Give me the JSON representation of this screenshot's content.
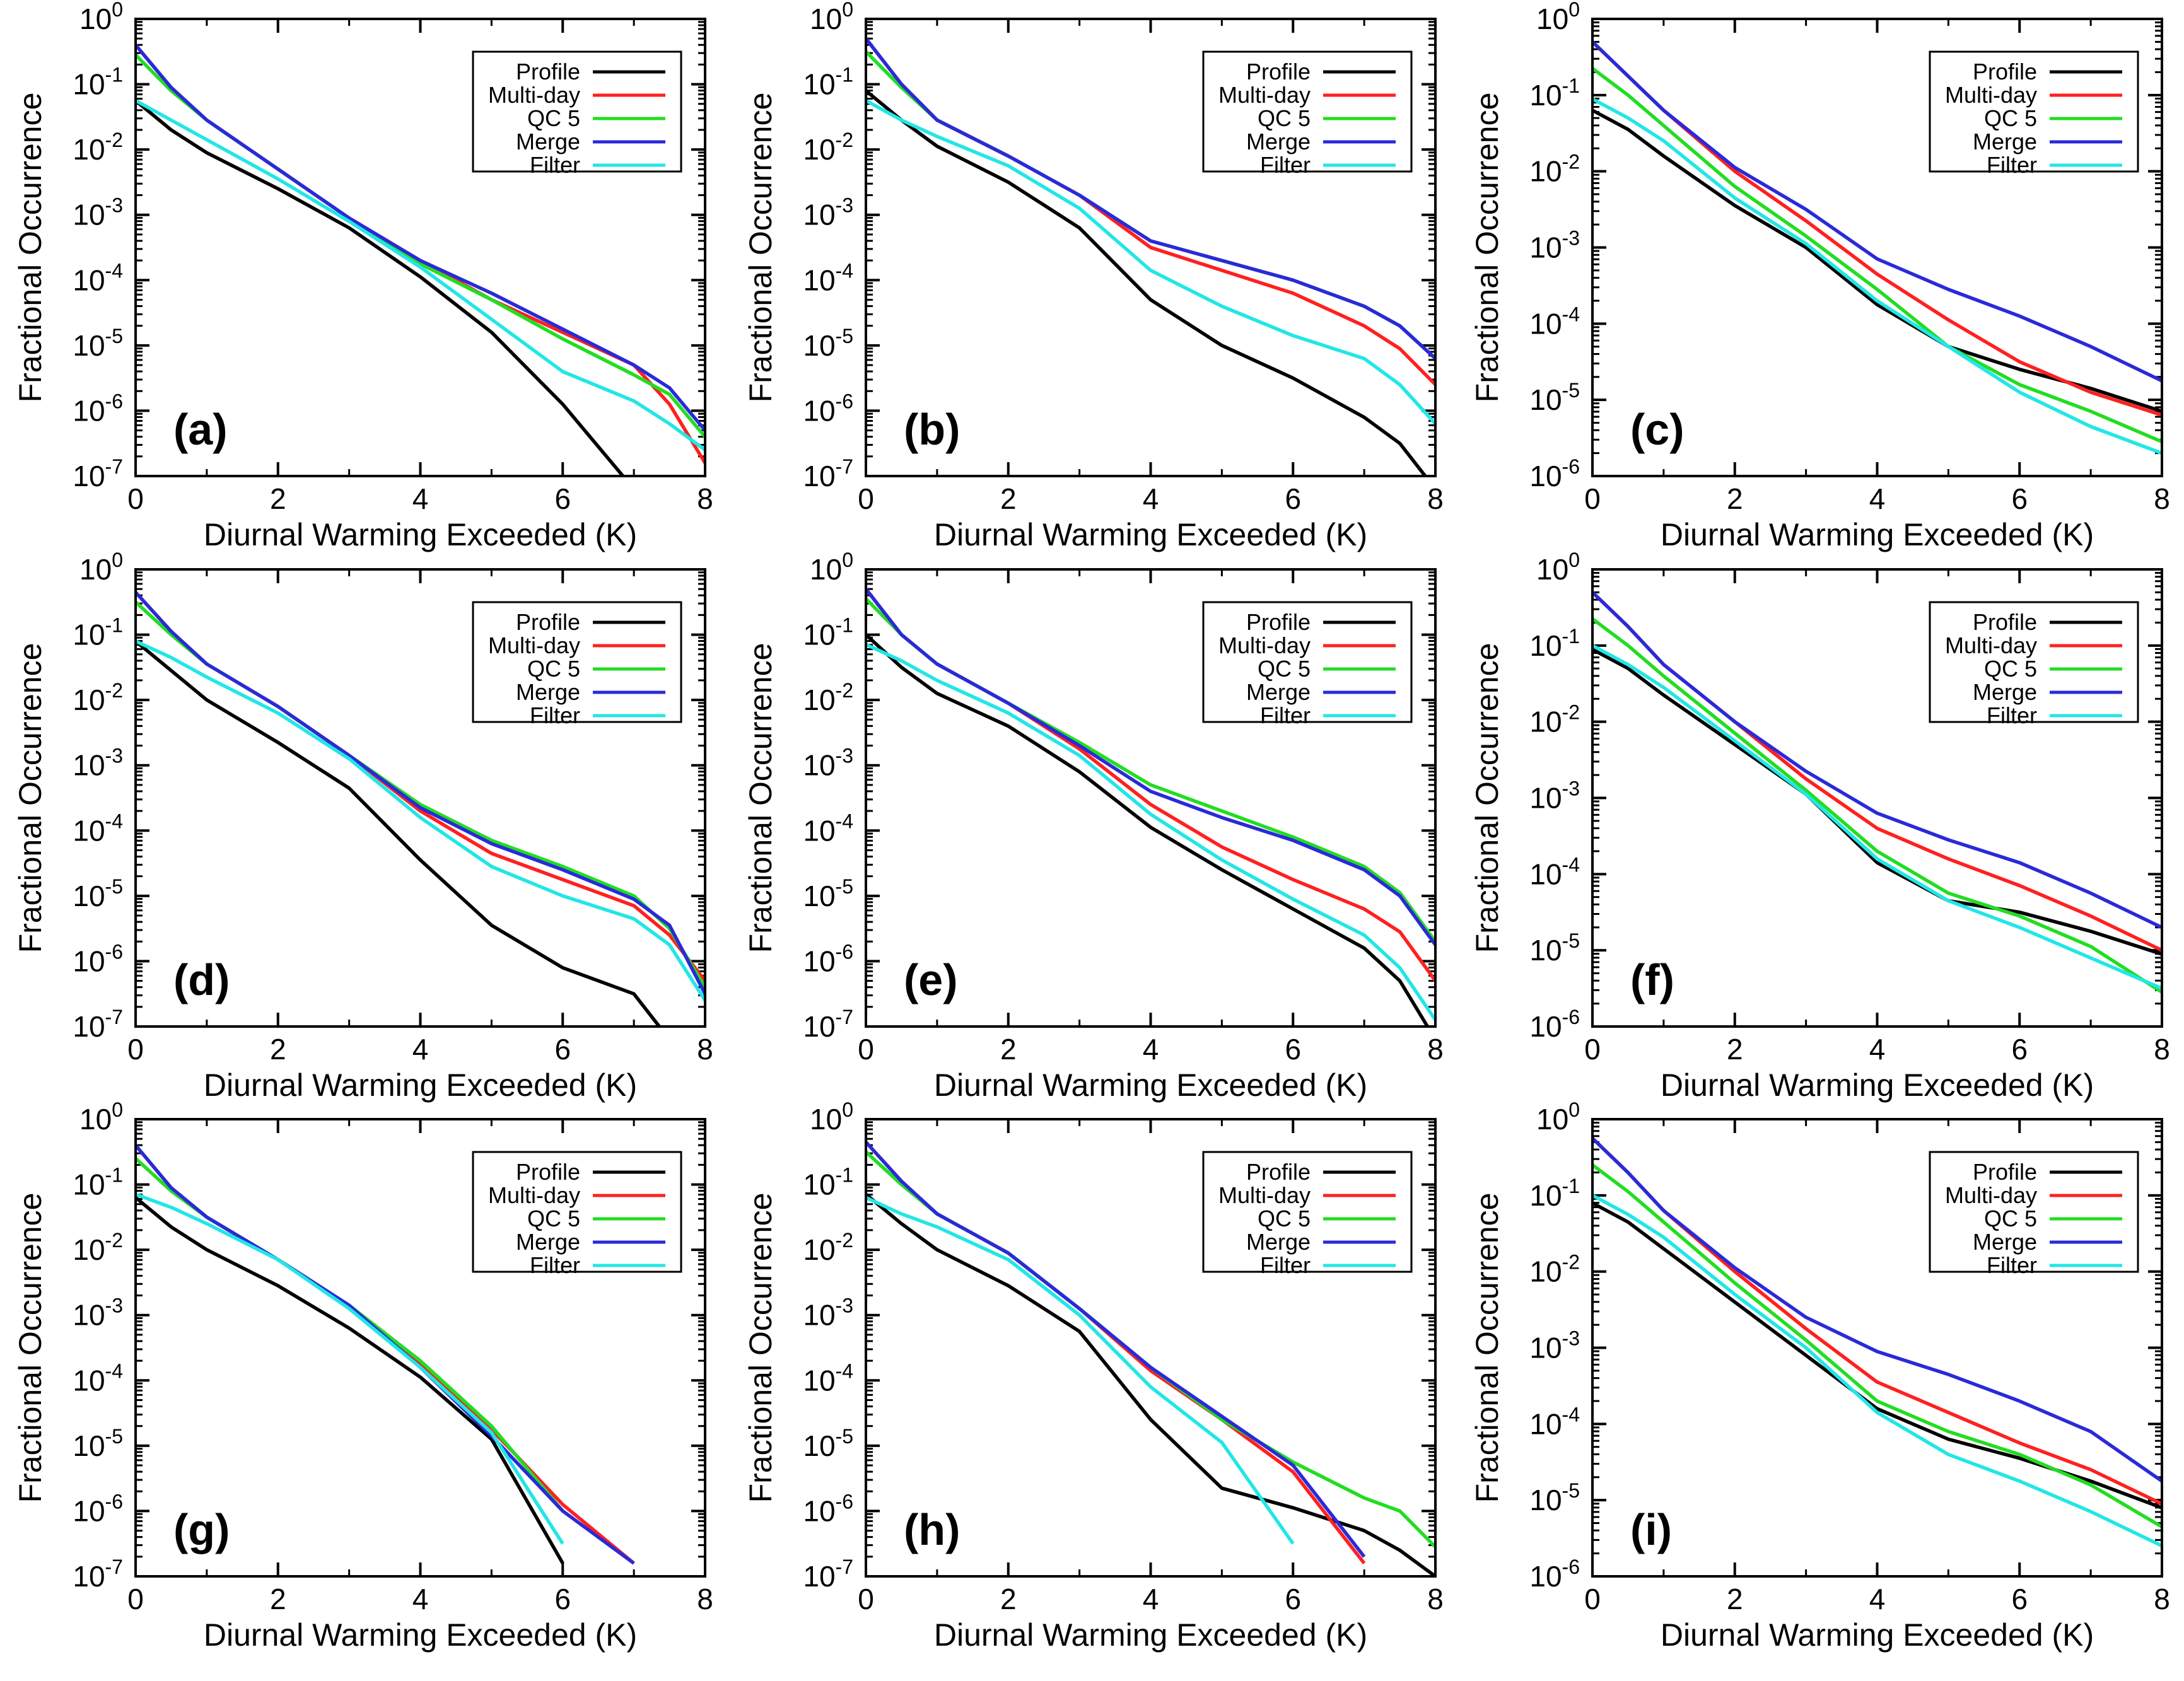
{
  "figure": {
    "xlabel": "Diurnal Warming Exceeded (K)",
    "ylabel": "Fractional Occurrence",
    "x_ticks": [
      "0",
      "2",
      "4",
      "6",
      "8"
    ],
    "legend": [
      {
        "name": "Profile",
        "color": "#000000"
      },
      {
        "name": "Multi-day",
        "color": "#ff2020"
      },
      {
        "name": "QC 5",
        "color": "#22dd22"
      },
      {
        "name": "Merge",
        "color": "#2a2ad8"
      },
      {
        "name": "Filter",
        "color": "#22e6e6"
      }
    ]
  },
  "chart_data": [
    {
      "type": "line",
      "panel": "(a)",
      "xlim": [
        0,
        8
      ],
      "ylim_exp": [
        -7,
        0
      ],
      "y_ticks": [
        "0",
        "-1",
        "-2",
        "-3",
        "-4",
        "-5",
        "-6",
        "-7"
      ],
      "xlabel": "Diurnal Warming Exceeded (K)",
      "ylabel": "Fractional Occurrence",
      "x": [
        0,
        0.5,
        1,
        2,
        3,
        4,
        5,
        6,
        7,
        7.5,
        8
      ],
      "series": [
        {
          "name": "Profile",
          "exp": [
            -1.25,
            -1.7,
            -2.05,
            -2.6,
            -3.2,
            -3.95,
            -4.8,
            -5.9,
            -7.2,
            null,
            null
          ]
        },
        {
          "name": "Multi-day",
          "exp": [
            -0.4,
            -1.05,
            -1.55,
            -2.3,
            -3.05,
            -3.7,
            -4.3,
            -4.8,
            -5.3,
            -5.9,
            -6.8
          ]
        },
        {
          "name": "QC 5",
          "exp": [
            -0.55,
            -1.1,
            -1.55,
            -2.3,
            -3.05,
            -3.75,
            -4.3,
            -4.9,
            -5.45,
            -5.75,
            -6.4
          ]
        },
        {
          "name": "Merge",
          "exp": [
            -0.4,
            -1.05,
            -1.55,
            -2.3,
            -3.05,
            -3.7,
            -4.2,
            -4.75,
            -5.3,
            -5.65,
            -6.3
          ]
        },
        {
          "name": "Filter",
          "exp": [
            -1.25,
            -1.55,
            -1.85,
            -2.45,
            -3.1,
            -3.8,
            -4.6,
            -5.4,
            -5.85,
            -6.2,
            -6.6
          ]
        }
      ]
    },
    {
      "type": "line",
      "panel": "(b)",
      "xlim": [
        0,
        8
      ],
      "ylim_exp": [
        -7,
        0
      ],
      "y_ticks": [
        "0",
        "-1",
        "-2",
        "-3",
        "-4",
        "-5",
        "-6",
        "-7"
      ],
      "xlabel": "Diurnal Warming Exceeded (K)",
      "ylabel": "Fractional Occurrence",
      "x": [
        0,
        0.5,
        1,
        2,
        3,
        4,
        5,
        6,
        7,
        7.5,
        8
      ],
      "series": [
        {
          "name": "Profile",
          "exp": [
            -1.1,
            -1.55,
            -1.95,
            -2.5,
            -3.2,
            -4.3,
            -5.0,
            -5.5,
            -6.1,
            -6.5,
            -7.2
          ]
        },
        {
          "name": "Multi-day",
          "exp": [
            -0.3,
            -1.0,
            -1.55,
            -2.1,
            -2.7,
            -3.5,
            -3.85,
            -4.2,
            -4.7,
            -5.05,
            -5.6
          ]
        },
        {
          "name": "QC 5",
          "exp": [
            -0.5,
            -1.05,
            -1.55,
            -2.1,
            -2.7,
            -3.4,
            -3.7,
            -4.0,
            -4.4,
            -4.7,
            -5.2
          ]
        },
        {
          "name": "Merge",
          "exp": [
            -0.3,
            -1.0,
            -1.55,
            -2.1,
            -2.7,
            -3.4,
            -3.7,
            -4.0,
            -4.4,
            -4.7,
            -5.2
          ]
        },
        {
          "name": "Filter",
          "exp": [
            -1.25,
            -1.55,
            -1.8,
            -2.25,
            -2.9,
            -3.85,
            -4.4,
            -4.85,
            -5.2,
            -5.6,
            -6.2
          ]
        }
      ]
    },
    {
      "type": "line",
      "panel": "(c)",
      "xlim": [
        0,
        8
      ],
      "ylim_exp": [
        -6,
        0
      ],
      "y_ticks": [
        "0",
        "-1",
        "-2",
        "-3",
        "-4",
        "-5",
        "-6"
      ],
      "xlabel": "Diurnal Warming Exceeded (K)",
      "ylabel": "Fractional Occurrence",
      "x": [
        0,
        0.5,
        1,
        2,
        3,
        4,
        5,
        6,
        7,
        8
      ],
      "series": [
        {
          "name": "Profile",
          "exp": [
            -1.2,
            -1.45,
            -1.8,
            -2.45,
            -3.0,
            -3.75,
            -4.3,
            -4.6,
            -4.85,
            -5.15
          ]
        },
        {
          "name": "Multi-day",
          "exp": [
            -0.3,
            -0.75,
            -1.2,
            -2.0,
            -2.65,
            -3.35,
            -3.95,
            -4.5,
            -4.9,
            -5.2
          ]
        },
        {
          "name": "QC 5",
          "exp": [
            -0.65,
            -1.0,
            -1.4,
            -2.2,
            -2.85,
            -3.55,
            -4.3,
            -4.8,
            -5.15,
            -5.55
          ]
        },
        {
          "name": "Merge",
          "exp": [
            -0.3,
            -0.75,
            -1.2,
            -1.95,
            -2.5,
            -3.15,
            -3.55,
            -3.9,
            -4.3,
            -4.75
          ]
        },
        {
          "name": "Filter",
          "exp": [
            -1.05,
            -1.3,
            -1.6,
            -2.35,
            -2.95,
            -3.7,
            -4.3,
            -4.9,
            -5.35,
            -5.7
          ]
        }
      ]
    },
    {
      "type": "line",
      "panel": "(d)",
      "xlim": [
        0,
        8
      ],
      "ylim_exp": [
        -7,
        0
      ],
      "y_ticks": [
        "0",
        "-1",
        "-2",
        "-3",
        "-4",
        "-5",
        "-6",
        "-7"
      ],
      "xlabel": "Diurnal Warming Exceeded (K)",
      "ylabel": "Fractional Occurrence",
      "x": [
        0,
        0.5,
        1,
        2,
        3,
        4,
        5,
        6,
        7,
        7.5,
        8
      ],
      "series": [
        {
          "name": "Profile",
          "exp": [
            -1.1,
            -1.55,
            -2.0,
            -2.65,
            -3.35,
            -4.45,
            -5.45,
            -6.1,
            -6.5,
            -7.2,
            null
          ]
        },
        {
          "name": "Multi-day",
          "exp": [
            -0.35,
            -0.95,
            -1.45,
            -2.1,
            -2.85,
            -3.7,
            -4.35,
            -4.75,
            -5.15,
            -5.6,
            -6.3
          ]
        },
        {
          "name": "QC 5",
          "exp": [
            -0.5,
            -1.0,
            -1.45,
            -2.1,
            -2.85,
            -3.6,
            -4.15,
            -4.55,
            -5.0,
            -5.5,
            -6.4
          ]
        },
        {
          "name": "Merge",
          "exp": [
            -0.35,
            -0.95,
            -1.45,
            -2.1,
            -2.85,
            -3.65,
            -4.2,
            -4.6,
            -5.05,
            -5.45,
            -6.5
          ]
        },
        {
          "name": "Filter",
          "exp": [
            -1.1,
            -1.35,
            -1.65,
            -2.2,
            -2.9,
            -3.8,
            -4.55,
            -5.0,
            -5.35,
            -5.75,
            -6.6
          ]
        }
      ]
    },
    {
      "type": "line",
      "panel": "(e)",
      "xlim": [
        0,
        8
      ],
      "ylim_exp": [
        -7,
        0
      ],
      "y_ticks": [
        "0",
        "-1",
        "-2",
        "-3",
        "-4",
        "-5",
        "-6",
        "-7"
      ],
      "xlabel": "Diurnal Warming Exceeded (K)",
      "ylabel": "Fractional Occurrence",
      "x": [
        0,
        0.5,
        1,
        2,
        3,
        4,
        5,
        6,
        7,
        7.5,
        8
      ],
      "series": [
        {
          "name": "Profile",
          "exp": [
            -1.0,
            -1.5,
            -1.9,
            -2.4,
            -3.1,
            -3.95,
            -4.6,
            -5.2,
            -5.8,
            -6.3,
            -7.2
          ]
        },
        {
          "name": "Multi-day",
          "exp": [
            -0.3,
            -1.0,
            -1.45,
            -2.05,
            -2.75,
            -3.6,
            -4.25,
            -4.75,
            -5.2,
            -5.55,
            -6.3
          ]
        },
        {
          "name": "QC 5",
          "exp": [
            -0.45,
            -1.0,
            -1.45,
            -2.05,
            -2.65,
            -3.3,
            -3.7,
            -4.1,
            -4.55,
            -4.95,
            -5.7
          ]
        },
        {
          "name": "Merge",
          "exp": [
            -0.3,
            -1.0,
            -1.45,
            -2.05,
            -2.7,
            -3.4,
            -3.8,
            -4.15,
            -4.6,
            -5.0,
            -5.75
          ]
        },
        {
          "name": "Filter",
          "exp": [
            -1.15,
            -1.4,
            -1.7,
            -2.2,
            -2.85,
            -3.75,
            -4.45,
            -5.05,
            -5.6,
            -6.1,
            -6.9
          ]
        }
      ]
    },
    {
      "type": "line",
      "panel": "(f)",
      "xlim": [
        0,
        8
      ],
      "ylim_exp": [
        -6,
        0
      ],
      "y_ticks": [
        "0",
        "-1",
        "-2",
        "-3",
        "-4",
        "-5",
        "-6"
      ],
      "xlabel": "Diurnal Warming Exceeded (K)",
      "ylabel": "Fractional Occurrence",
      "x": [
        0,
        0.5,
        1,
        2,
        3,
        4,
        5,
        6,
        7,
        8
      ],
      "series": [
        {
          "name": "Profile",
          "exp": [
            -1.05,
            -1.3,
            -1.65,
            -2.3,
            -2.95,
            -3.85,
            -4.35,
            -4.5,
            -4.75,
            -5.05
          ]
        },
        {
          "name": "Multi-day",
          "exp": [
            -0.3,
            -0.75,
            -1.25,
            -2.0,
            -2.75,
            -3.4,
            -3.8,
            -4.15,
            -4.55,
            -5.0
          ]
        },
        {
          "name": "QC 5",
          "exp": [
            -0.65,
            -1.0,
            -1.4,
            -2.15,
            -2.9,
            -3.7,
            -4.25,
            -4.55,
            -4.95,
            -5.55
          ]
        },
        {
          "name": "Merge",
          "exp": [
            -0.3,
            -0.75,
            -1.25,
            -2.0,
            -2.65,
            -3.2,
            -3.55,
            -3.85,
            -4.25,
            -4.7
          ]
        },
        {
          "name": "Filter",
          "exp": [
            -1.0,
            -1.25,
            -1.55,
            -2.25,
            -2.95,
            -3.8,
            -4.35,
            -4.7,
            -5.1,
            -5.5
          ]
        }
      ]
    },
    {
      "type": "line",
      "panel": "(g)",
      "xlim": [
        0,
        8
      ],
      "ylim_exp": [
        -7,
        0
      ],
      "y_ticks": [
        "0",
        "-1",
        "-2",
        "-3",
        "-4",
        "-5",
        "-6",
        "-7"
      ],
      "xlabel": "Diurnal Warming Exceeded (K)",
      "ylabel": "Fractional Occurrence",
      "x": [
        0,
        0.5,
        1,
        2,
        3,
        4,
        5,
        6,
        7,
        7.5,
        8
      ],
      "series": [
        {
          "name": "Profile",
          "exp": [
            -1.2,
            -1.65,
            -2.0,
            -2.55,
            -3.2,
            -3.95,
            -4.9,
            -6.8,
            null,
            null,
            null
          ]
        },
        {
          "name": "Multi-day",
          "exp": [
            -0.4,
            -1.05,
            -1.5,
            -2.15,
            -2.85,
            -3.75,
            -4.75,
            -5.9,
            -6.8,
            null,
            null
          ]
        },
        {
          "name": "QC 5",
          "exp": [
            -0.6,
            -1.1,
            -1.5,
            -2.15,
            -2.85,
            -3.7,
            -4.7,
            -6.0,
            null,
            null,
            null
          ]
        },
        {
          "name": "Merge",
          "exp": [
            -0.4,
            -1.05,
            -1.5,
            -2.15,
            -2.85,
            -3.8,
            -4.85,
            -6.0,
            -6.8,
            null,
            null
          ]
        },
        {
          "name": "Filter",
          "exp": [
            -1.15,
            -1.35,
            -1.6,
            -2.15,
            -2.9,
            -3.8,
            -4.8,
            -6.5,
            null,
            null,
            null
          ]
        }
      ]
    },
    {
      "type": "line",
      "panel": "(h)",
      "xlim": [
        0,
        8
      ],
      "ylim_exp": [
        -7,
        0
      ],
      "y_ticks": [
        "0",
        "-1",
        "-2",
        "-3",
        "-4",
        "-5",
        "-6",
        "-7"
      ],
      "xlabel": "Diurnal Warming Exceeded (K)",
      "ylabel": "Fractional Occurrence",
      "x": [
        0,
        0.5,
        1,
        2,
        3,
        4,
        5,
        6,
        7,
        7.5,
        8
      ],
      "series": [
        {
          "name": "Profile",
          "exp": [
            -1.15,
            -1.6,
            -2.0,
            -2.55,
            -3.25,
            -4.6,
            -5.65,
            -5.95,
            -6.3,
            -6.6,
            -7.0
          ]
        },
        {
          "name": "Multi-day",
          "exp": [
            -0.35,
            -0.95,
            -1.45,
            -2.05,
            -2.9,
            -3.85,
            -4.6,
            -5.4,
            -6.8,
            null,
            null
          ]
        },
        {
          "name": "QC 5",
          "exp": [
            -0.5,
            -1.0,
            -1.45,
            -2.05,
            -2.9,
            -3.8,
            -4.6,
            -5.25,
            -5.8,
            -6.0,
            -6.55
          ]
        },
        {
          "name": "Merge",
          "exp": [
            -0.35,
            -0.95,
            -1.45,
            -2.05,
            -2.9,
            -3.8,
            -4.55,
            -5.3,
            -6.7,
            null,
            null
          ]
        },
        {
          "name": "Filter",
          "exp": [
            -1.2,
            -1.45,
            -1.65,
            -2.15,
            -3.0,
            -4.1,
            -4.95,
            -6.5,
            null,
            null,
            null
          ]
        }
      ]
    },
    {
      "type": "line",
      "panel": "(i)",
      "xlim": [
        0,
        8
      ],
      "ylim_exp": [
        -6,
        0
      ],
      "y_ticks": [
        "0",
        "-1",
        "-2",
        "-3",
        "-4",
        "-5",
        "-6"
      ],
      "xlabel": "Diurnal Warming Exceeded (K)",
      "ylabel": "Fractional Occurrence",
      "x": [
        0,
        0.5,
        1,
        2,
        3,
        4,
        5,
        6,
        7,
        8
      ],
      "series": [
        {
          "name": "Profile",
          "exp": [
            -1.1,
            -1.35,
            -1.7,
            -2.4,
            -3.1,
            -3.8,
            -4.2,
            -4.45,
            -4.75,
            -5.1
          ]
        },
        {
          "name": "Multi-day",
          "exp": [
            -0.25,
            -0.7,
            -1.2,
            -2.0,
            -2.75,
            -3.45,
            -3.85,
            -4.25,
            -4.6,
            -5.05
          ]
        },
        {
          "name": "QC 5",
          "exp": [
            -0.6,
            -0.95,
            -1.35,
            -2.15,
            -2.9,
            -3.7,
            -4.1,
            -4.4,
            -4.8,
            -5.35
          ]
        },
        {
          "name": "Merge",
          "exp": [
            -0.25,
            -0.7,
            -1.2,
            -1.95,
            -2.6,
            -3.05,
            -3.35,
            -3.7,
            -4.1,
            -4.75
          ]
        },
        {
          "name": "Filter",
          "exp": [
            -1.0,
            -1.25,
            -1.55,
            -2.3,
            -3.0,
            -3.85,
            -4.4,
            -4.75,
            -5.15,
            -5.6
          ]
        }
      ]
    }
  ]
}
